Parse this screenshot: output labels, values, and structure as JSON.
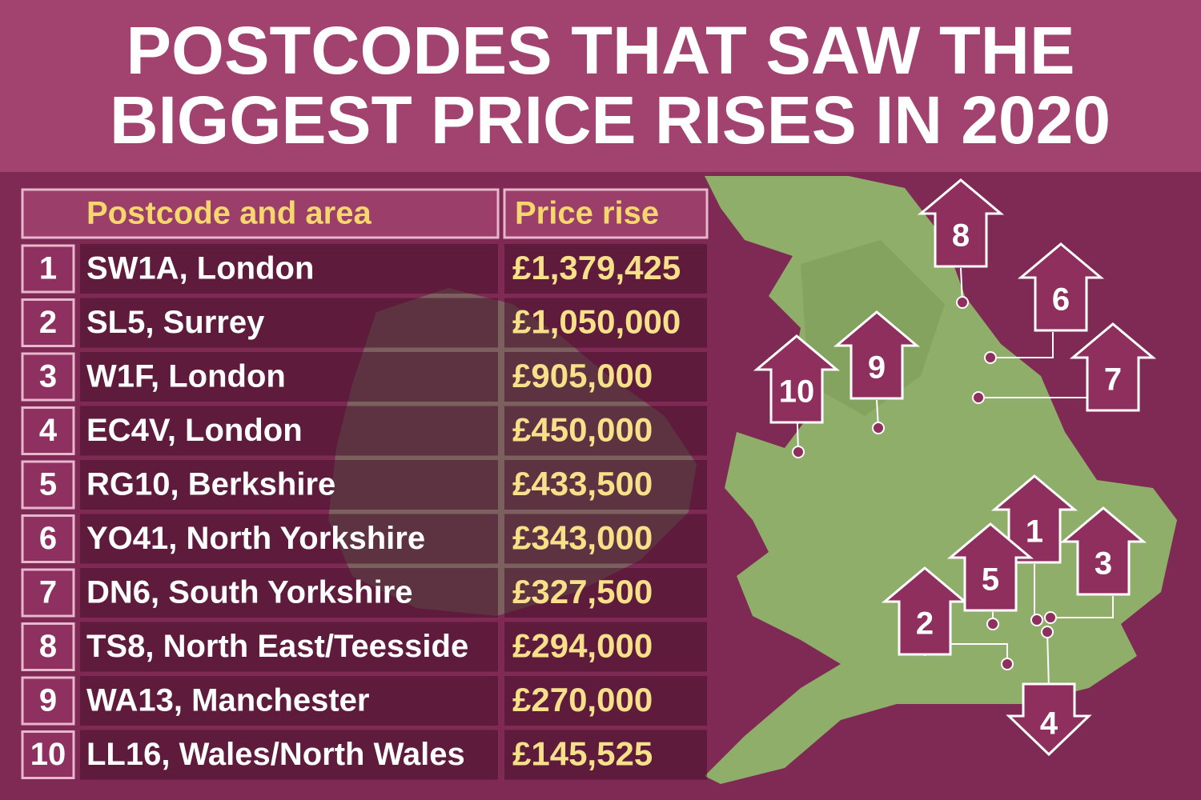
{
  "header": {
    "title_lines": [
      "POSTCODES THAT SAW THE",
      "BIGGEST PRICE RISES IN 2020"
    ]
  },
  "table": {
    "columns": [
      "Postcode and area",
      "Price rise"
    ],
    "rows": [
      {
        "rank": "1",
        "area": "SW1A, London",
        "price": "£1,379,425"
      },
      {
        "rank": "2",
        "area": "SL5, Surrey",
        "price": "£1,050,000"
      },
      {
        "rank": "3",
        "area": "W1F, London",
        "price": "£905,000"
      },
      {
        "rank": "4",
        "area": "EC4V, London",
        "price": "£450,000"
      },
      {
        "rank": "5",
        "area": "RG10, Berkshire",
        "price": "£433,500"
      },
      {
        "rank": "6",
        "area": "YO41, North Yorkshire",
        "price": "£343,000"
      },
      {
        "rank": "7",
        "area": "DN6, South Yorkshire",
        "price": "£327,500"
      },
      {
        "rank": "8",
        "area": "TS8, North East/Teesside",
        "price": "£294,000"
      },
      {
        "rank": "9",
        "area": "WA13, Manchester",
        "price": "£270,000"
      },
      {
        "rank": "10",
        "area": "LL16, Wales/North Wales",
        "price": "£145,525"
      }
    ]
  }
}
